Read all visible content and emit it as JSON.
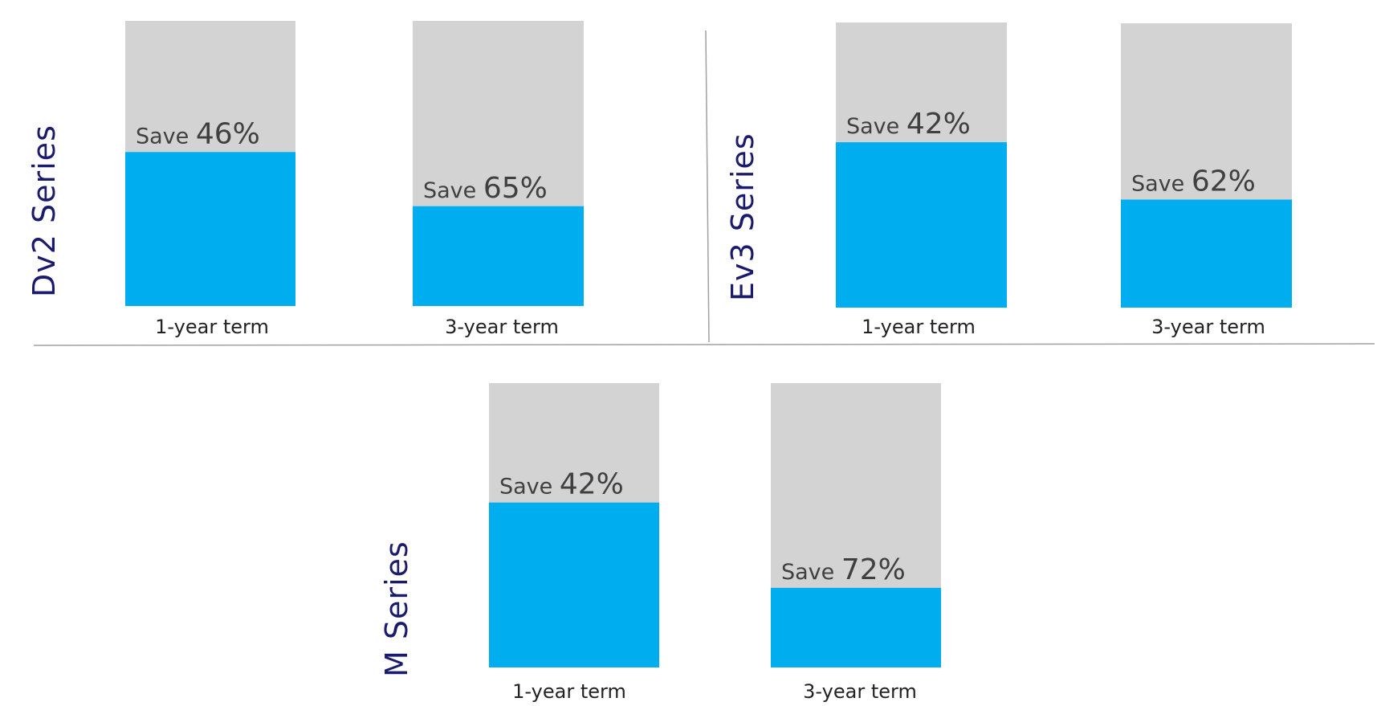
{
  "colors": {
    "full_price": "#d3d3d3",
    "discounted": "#00aeef",
    "series_title": "#1b1b6e",
    "label_text": "#404040",
    "axis_text": "#222222",
    "divider": "#a0a0a0"
  },
  "chart_data": [
    {
      "type": "bar",
      "stacked": true,
      "title": "Dv2 Series",
      "categories": [
        "1-year term",
        "3-year term"
      ],
      "savings_percent": [
        46,
        65
      ],
      "save_label": "Save",
      "value_labels": [
        "46%",
        "65%"
      ]
    },
    {
      "type": "bar",
      "stacked": true,
      "title": "Ev3 Series",
      "categories": [
        "1-year term",
        "3-year term"
      ],
      "savings_percent": [
        42,
        62
      ],
      "save_label": "Save",
      "value_labels": [
        "42%",
        "62%"
      ]
    },
    {
      "type": "bar",
      "stacked": true,
      "title": "M Series",
      "categories": [
        "1-year term",
        "3-year term"
      ],
      "savings_percent": [
        42,
        72
      ],
      "save_label": "Save",
      "value_labels": [
        "42%",
        "72%"
      ]
    }
  ]
}
